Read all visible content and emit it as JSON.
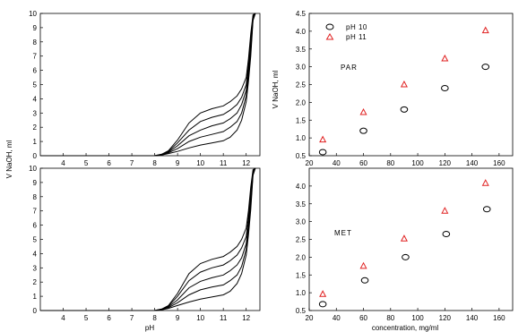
{
  "y_axis_label_left": "V NaOH, ml",
  "chart_data": [
    {
      "id": "titration-top-left",
      "type": "line",
      "xlabel": "",
      "ylabel": "V NaOH, ml",
      "xlim": [
        3.0,
        12.6
      ],
      "ylim": [
        0,
        10
      ],
      "x_ticks": [
        4,
        5,
        6,
        7,
        8,
        9,
        10,
        11,
        12
      ],
      "y_ticks": [
        0,
        1,
        2,
        3,
        4,
        5,
        6,
        7,
        8,
        9,
        10
      ],
      "series": [
        {
          "x": [
            3.0,
            7.0,
            8.0,
            8.3,
            8.6,
            9.0,
            9.5,
            10.0,
            10.5,
            11.0,
            11.3,
            11.6,
            11.8,
            12.0,
            12.1,
            12.2,
            12.3,
            12.4
          ],
          "values": [
            0,
            0,
            0,
            0.05,
            0.15,
            0.3,
            0.55,
            0.75,
            0.9,
            1.05,
            1.3,
            1.8,
            2.5,
            3.8,
            5.2,
            7.0,
            9.5,
            10.0
          ]
        },
        {
          "x": [
            3.0,
            7.0,
            8.0,
            8.3,
            8.6,
            9.0,
            9.5,
            10.0,
            10.5,
            11.0,
            11.3,
            11.6,
            11.8,
            12.0,
            12.1,
            12.2,
            12.3,
            12.4
          ],
          "values": [
            0,
            0,
            0,
            0.05,
            0.2,
            0.5,
            1.0,
            1.3,
            1.5,
            1.7,
            2.0,
            2.4,
            3.0,
            4.2,
            5.6,
            7.4,
            9.6,
            10.0
          ]
        },
        {
          "x": [
            3.0,
            7.0,
            8.0,
            8.3,
            8.6,
            9.0,
            9.5,
            10.0,
            10.5,
            11.0,
            11.3,
            11.6,
            11.8,
            12.0,
            12.1,
            12.2,
            12.3,
            12.4
          ],
          "values": [
            0,
            0,
            0,
            0.05,
            0.25,
            0.7,
            1.4,
            1.8,
            2.1,
            2.3,
            2.6,
            3.0,
            3.6,
            4.6,
            6.0,
            7.8,
            9.7,
            10.0
          ]
        },
        {
          "x": [
            3.0,
            7.0,
            8.0,
            8.3,
            8.6,
            9.0,
            9.5,
            10.0,
            10.5,
            11.0,
            11.3,
            11.6,
            11.8,
            12.0,
            12.1,
            12.2,
            12.3,
            12.4
          ],
          "values": [
            0,
            0,
            0,
            0.1,
            0.3,
            0.9,
            1.8,
            2.4,
            2.7,
            2.9,
            3.2,
            3.6,
            4.1,
            5.0,
            6.4,
            8.2,
            9.8,
            10.0
          ]
        },
        {
          "x": [
            3.0,
            7.0,
            8.0,
            8.3,
            8.6,
            9.0,
            9.5,
            10.0,
            10.5,
            11.0,
            11.3,
            11.6,
            11.8,
            12.0,
            12.1,
            12.2,
            12.3,
            12.4
          ],
          "values": [
            0,
            0,
            0,
            0.1,
            0.35,
            1.1,
            2.3,
            3.0,
            3.3,
            3.5,
            3.8,
            4.2,
            4.7,
            5.5,
            6.8,
            8.6,
            9.9,
            10.0
          ]
        }
      ]
    },
    {
      "id": "titration-bottom-left",
      "type": "line",
      "xlabel": "pH",
      "ylabel": "",
      "xlim": [
        3.0,
        12.6
      ],
      "ylim": [
        0,
        10
      ],
      "x_ticks": [
        4,
        5,
        6,
        7,
        8,
        9,
        10,
        11,
        12
      ],
      "y_ticks": [
        0,
        1,
        2,
        3,
        4,
        5,
        6,
        7,
        8,
        9,
        10
      ],
      "series": [
        {
          "x": [
            3.0,
            7.0,
            8.0,
            8.3,
            8.6,
            9.0,
            9.5,
            10.0,
            10.5,
            11.0,
            11.3,
            11.6,
            11.8,
            12.0,
            12.1,
            12.2,
            12.3,
            12.4
          ],
          "values": [
            0,
            0,
            0,
            0.05,
            0.15,
            0.35,
            0.6,
            0.8,
            0.95,
            1.1,
            1.35,
            1.9,
            2.6,
            3.9,
            5.3,
            7.1,
            9.5,
            10.0
          ]
        },
        {
          "x": [
            3.0,
            7.0,
            8.0,
            8.3,
            8.6,
            9.0,
            9.5,
            10.0,
            10.5,
            11.0,
            11.3,
            11.6,
            11.8,
            12.0,
            12.1,
            12.2,
            12.3,
            12.4
          ],
          "values": [
            0,
            0,
            0,
            0.05,
            0.2,
            0.55,
            1.1,
            1.45,
            1.65,
            1.8,
            2.1,
            2.5,
            3.1,
            4.3,
            5.7,
            7.5,
            9.6,
            10.0
          ]
        },
        {
          "x": [
            3.0,
            7.0,
            8.0,
            8.3,
            8.6,
            9.0,
            9.5,
            10.0,
            10.5,
            11.0,
            11.3,
            11.6,
            11.8,
            12.0,
            12.1,
            12.2,
            12.3,
            12.4
          ],
          "values": [
            0,
            0,
            0,
            0.05,
            0.25,
            0.75,
            1.6,
            2.05,
            2.3,
            2.5,
            2.8,
            3.2,
            3.7,
            4.7,
            6.1,
            7.9,
            9.7,
            10.0
          ]
        },
        {
          "x": [
            3.0,
            7.0,
            8.0,
            8.3,
            8.6,
            9.0,
            9.5,
            10.0,
            10.5,
            11.0,
            11.3,
            11.6,
            11.8,
            12.0,
            12.1,
            12.2,
            12.3,
            12.4
          ],
          "values": [
            0,
            0,
            0,
            0.1,
            0.3,
            1.0,
            2.1,
            2.7,
            3.0,
            3.2,
            3.5,
            3.9,
            4.4,
            5.2,
            6.6,
            8.3,
            9.8,
            10.0
          ]
        },
        {
          "x": [
            3.0,
            7.0,
            8.0,
            8.3,
            8.6,
            9.0,
            9.5,
            10.0,
            10.5,
            11.0,
            11.3,
            11.6,
            11.8,
            12.0,
            12.1,
            12.2,
            12.3,
            12.4
          ],
          "values": [
            0,
            0,
            0,
            0.1,
            0.35,
            1.2,
            2.6,
            3.3,
            3.6,
            3.8,
            4.1,
            4.5,
            5.0,
            5.8,
            7.0,
            8.7,
            9.9,
            10.0
          ]
        }
      ]
    },
    {
      "id": "scatter-top-right",
      "type": "scatter",
      "annotation": "PAR",
      "xlabel": "",
      "ylabel": "V NaOH, ml",
      "xlim": [
        20,
        170
      ],
      "ylim": [
        0.5,
        4.5
      ],
      "x_ticks": [
        20,
        40,
        60,
        80,
        100,
        120,
        140,
        160
      ],
      "y_ticks": [
        0.5,
        1.0,
        1.5,
        2.0,
        2.5,
        3.0,
        3.5,
        4.0,
        4.5
      ],
      "legend": {
        "placement": "top-left",
        "entries": [
          "pH 10",
          "pH 11"
        ]
      },
      "series": [
        {
          "name": "pH 10",
          "marker": "circle",
          "color": "#000000",
          "x": [
            30,
            60,
            90,
            120,
            150
          ],
          "values": [
            0.6,
            1.2,
            1.8,
            2.4,
            3.0
          ]
        },
        {
          "name": "pH 11",
          "marker": "triangle",
          "color": "#e02020",
          "x": [
            30,
            60,
            90,
            120,
            150
          ],
          "values": [
            0.95,
            1.72,
            2.5,
            3.23,
            4.02
          ]
        }
      ]
    },
    {
      "id": "scatter-bottom-right",
      "type": "scatter",
      "annotation": "MET",
      "xlabel": "concentration, mg/ml",
      "ylabel": "",
      "xlim": [
        20,
        170
      ],
      "ylim": [
        0.5,
        4.5
      ],
      "x_ticks": [
        20,
        40,
        60,
        80,
        100,
        120,
        140,
        160
      ],
      "y_ticks": [
        0.5,
        1.0,
        1.5,
        2.0,
        2.5,
        3.0,
        3.5,
        4.0
      ],
      "series": [
        {
          "name": "pH 10",
          "marker": "circle",
          "color": "#000000",
          "x": [
            30,
            61,
            91,
            121,
            151
          ],
          "values": [
            0.68,
            1.35,
            2.0,
            2.65,
            3.35
          ]
        },
        {
          "name": "pH 11",
          "marker": "triangle",
          "color": "#e02020",
          "x": [
            30,
            60,
            90,
            120,
            150
          ],
          "values": [
            0.96,
            1.75,
            2.52,
            3.3,
            4.08
          ]
        }
      ]
    }
  ]
}
